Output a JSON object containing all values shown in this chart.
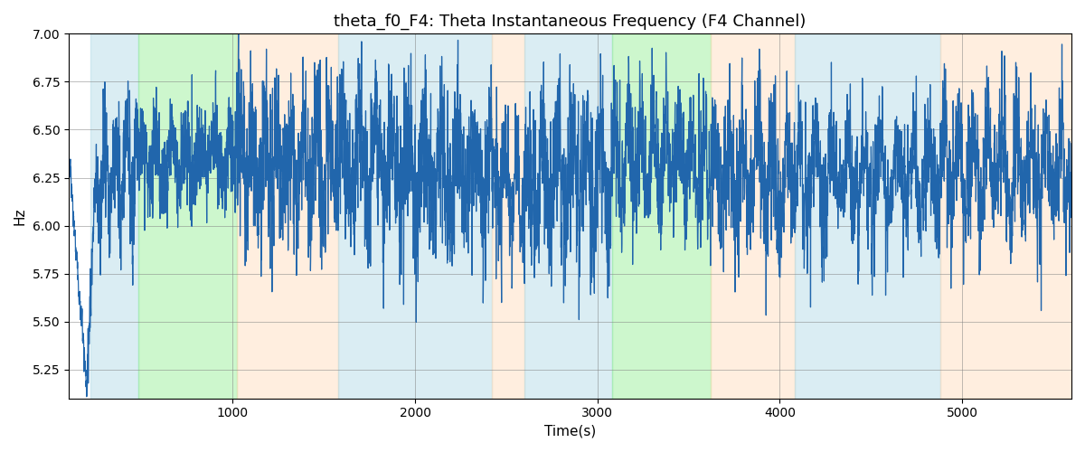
{
  "title": "theta_f0_F4: Theta Instantaneous Frequency (F4 Channel)",
  "xlabel": "Time(s)",
  "ylabel": "Hz",
  "xlim": [
    100,
    5600
  ],
  "ylim": [
    5.1,
    7.0
  ],
  "yticks": [
    5.25,
    5.5,
    5.75,
    6.0,
    6.25,
    6.5,
    6.75,
    7.0
  ],
  "xticks": [
    1000,
    2000,
    3000,
    4000,
    5000
  ],
  "line_color": "#2166ac",
  "bg_regions": [
    {
      "xstart": 220,
      "xend": 480,
      "color": "#ADD8E6",
      "alpha": 0.45
    },
    {
      "xstart": 480,
      "xend": 1020,
      "color": "#90EE90",
      "alpha": 0.45
    },
    {
      "xstart": 1020,
      "xend": 1580,
      "color": "#FFDAB9",
      "alpha": 0.45
    },
    {
      "xstart": 1580,
      "xend": 2420,
      "color": "#ADD8E6",
      "alpha": 0.45
    },
    {
      "xstart": 2420,
      "xend": 2600,
      "color": "#FFDAB9",
      "alpha": 0.45
    },
    {
      "xstart": 2600,
      "xend": 3080,
      "color": "#ADD8E6",
      "alpha": 0.45
    },
    {
      "xstart": 3080,
      "xend": 3620,
      "color": "#90EE90",
      "alpha": 0.45
    },
    {
      "xstart": 3620,
      "xend": 4080,
      "color": "#FFDAB9",
      "alpha": 0.45
    },
    {
      "xstart": 4080,
      "xend": 4880,
      "color": "#ADD8E6",
      "alpha": 0.45
    },
    {
      "xstart": 4880,
      "xend": 5600,
      "color": "#FFDAB9",
      "alpha": 0.45
    }
  ]
}
